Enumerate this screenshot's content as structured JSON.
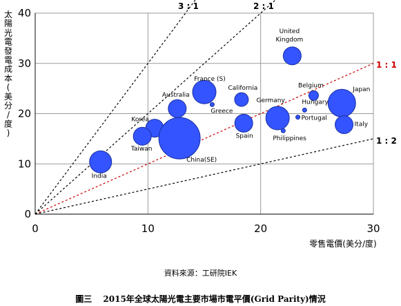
{
  "chart_data": {
    "type": "scatter",
    "ylabel": "太陽光電發電成本(美分/度)",
    "xlabel": "零售電價(美分/度)",
    "xlim": [
      0,
      30
    ],
    "ylim": [
      0,
      40
    ],
    "x_ticks": [
      0,
      10,
      20,
      30
    ],
    "y_ticks": [
      0,
      10,
      20,
      30,
      40
    ],
    "grid": true,
    "ratio_lines": [
      {
        "label": "3 : 1",
        "slope": 3,
        "color": "#000000"
      },
      {
        "label": "2 : 1",
        "slope": 2,
        "color": "#000000"
      },
      {
        "label": "1 : 1",
        "slope": 1,
        "color": "#cc0000"
      },
      {
        "label": "1 : 2",
        "slope": 0.5,
        "color": "#000000"
      }
    ],
    "points": [
      {
        "label": "United Kingdom",
        "x": 22.8,
        "y": 31.5,
        "size": 13
      },
      {
        "label": "France (S)",
        "x": 15.0,
        "y": 24.3,
        "size": 17
      },
      {
        "label": "Greece",
        "x": 15.7,
        "y": 21.8,
        "size": 3
      },
      {
        "label": "California",
        "x": 18.3,
        "y": 22.8,
        "size": 10
      },
      {
        "label": "Belgium",
        "x": 24.7,
        "y": 23.6,
        "size": 7
      },
      {
        "label": "Hungary",
        "x": 23.9,
        "y": 20.7,
        "size": 3
      },
      {
        "label": "Japan",
        "x": 27.2,
        "y": 22.1,
        "size": 20
      },
      {
        "label": "Australia",
        "x": 12.6,
        "y": 21.0,
        "size": 13
      },
      {
        "label": "Korea",
        "x": 10.6,
        "y": 17.1,
        "size": 13
      },
      {
        "label": "Taiwan",
        "x": 9.5,
        "y": 15.5,
        "size": 13
      },
      {
        "label": "Germany",
        "x": 21.5,
        "y": 19.1,
        "size": 17
      },
      {
        "label": "Portugal",
        "x": 23.3,
        "y": 19.3,
        "size": 3
      },
      {
        "label": "Philippines",
        "x": 22.0,
        "y": 16.6,
        "size": 3
      },
      {
        "label": "Spain",
        "x": 18.5,
        "y": 18.1,
        "size": 13
      },
      {
        "label": "Italy",
        "x": 27.4,
        "y": 17.8,
        "size": 13
      },
      {
        "label": "China(SE)",
        "x": 12.8,
        "y": 15.1,
        "size": 30
      },
      {
        "label": "India",
        "x": 5.8,
        "y": 10.4,
        "size": 16
      }
    ]
  },
  "source": "資料來源：工研院IEK",
  "caption": "圖三　 2015年全球太陽光電主要市場市電平價(Grid Parity)情況"
}
